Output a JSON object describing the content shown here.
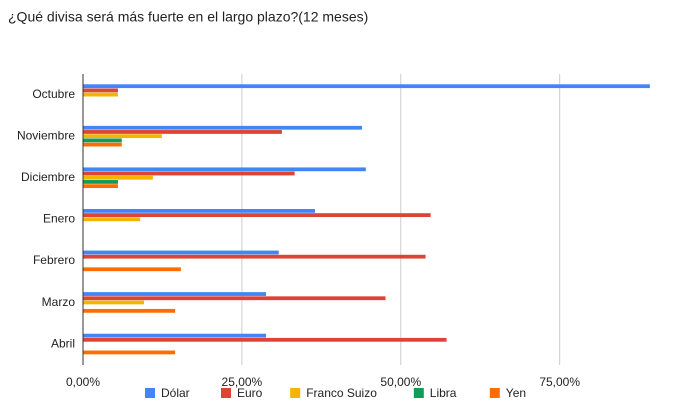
{
  "chart_data": {
    "type": "hbar",
    "title": "¿Qué divisa será más fuerte en el largo plazo?(12 meses)",
    "categories": [
      "Octubre",
      "Noviembre",
      "Diciembre",
      "Enero",
      "Febrero",
      "Marzo",
      "Abril"
    ],
    "series": [
      {
        "name": "Dólar",
        "color": "#4285f4",
        "values": [
          89.2,
          43.9,
          44.5,
          36.5,
          30.8,
          28.8,
          28.8
        ]
      },
      {
        "name": "Euro",
        "color": "#db4437",
        "values": [
          5.5,
          31.3,
          33.3,
          54.7,
          53.9,
          47.6,
          57.2
        ]
      },
      {
        "name": "Franco Suizo",
        "color": "#f4b400",
        "values": [
          5.5,
          12.4,
          11,
          9,
          0,
          9.6,
          0
        ]
      },
      {
        "name": "Libra",
        "color": "#0f9d58",
        "values": [
          0,
          6.1,
          5.5,
          0,
          0,
          0,
          0
        ]
      },
      {
        "name": "Yen",
        "color": "#ff6d00",
        "values": [
          0,
          6.1,
          5.5,
          0,
          15.4,
          14.5,
          14.5
        ]
      }
    ],
    "xlim": [
      0,
      90
    ],
    "xticks": [
      {
        "value": 0,
        "label": "0,00%"
      },
      {
        "value": 25,
        "label": "25,00%"
      },
      {
        "value": 50,
        "label": "50,00%"
      },
      {
        "value": 75,
        "label": "75,00%"
      }
    ],
    "grid": true,
    "legend": "bottom"
  }
}
